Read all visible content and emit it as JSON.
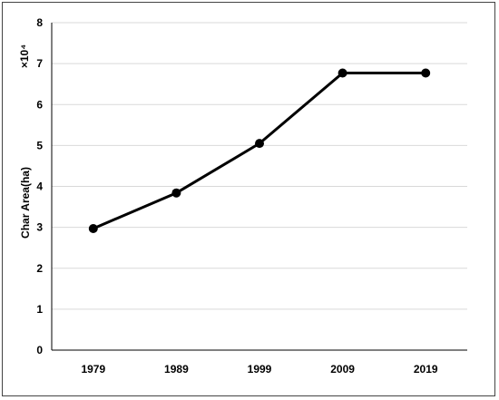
{
  "chart_data": {
    "type": "line",
    "title": "",
    "ylabel": "Char Area(ha)",
    "multiplier": "×10⁴",
    "categories": [
      "1979",
      "1989",
      "1999",
      "2009",
      "2019"
    ],
    "series": [
      {
        "values": [
          2.97,
          3.84,
          5.05,
          6.77,
          6.77
        ]
      }
    ],
    "ylim": [
      0,
      8
    ],
    "yticks": [
      "0",
      "1",
      "2",
      "3",
      "4",
      "5",
      "6",
      "7",
      "8"
    ],
    "grid": true,
    "legend": "none",
    "line_color": "#000000",
    "grid_color": "#d9d9d9"
  }
}
